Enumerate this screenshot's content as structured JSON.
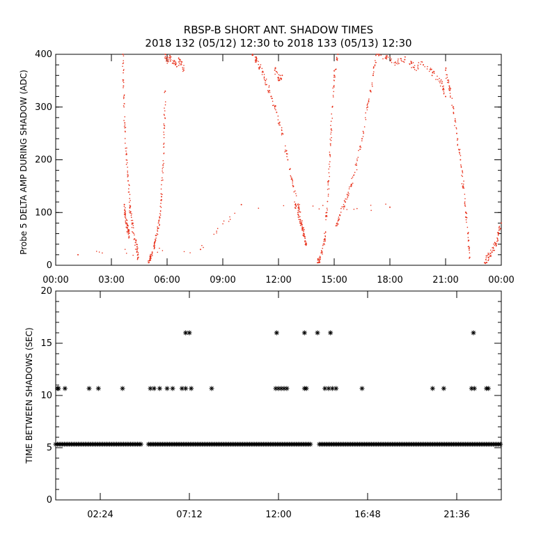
{
  "title_line1": "RBSP-B SHORT ANT. SHADOW TIMES",
  "title_line2": "2018 132 (05/12) 12:30 to 2018 133 (05/13) 12:30",
  "colors": {
    "background": "#ffffff",
    "axes": "#000000",
    "top_points": "#e8301a",
    "bottom_points": "#000000"
  },
  "chart_data": [
    {
      "type": "scatter",
      "ylabel": "Probe 5 DELTA AMP DURING SHADOW (ADC)",
      "xlabel": "",
      "x_unit": "hours",
      "xlim": [
        0,
        24
      ],
      "ylim": [
        0,
        400
      ],
      "x_ticks": [
        0,
        3,
        6,
        9,
        12,
        15,
        18,
        21,
        24
      ],
      "x_tick_labels": [
        "00:00",
        "03:00",
        "06:00",
        "09:00",
        "12:00",
        "15:00",
        "18:00",
        "21:00",
        "00:00"
      ],
      "y_ticks": [
        0,
        100,
        200,
        300,
        400
      ],
      "y_tick_labels": [
        "0",
        "100",
        "200",
        "300",
        "400"
      ],
      "marker": "dot",
      "color": "#e8301a",
      "series": [
        {
          "segments": [
            {
              "x": [
                3.62,
                3.65,
                3.72,
                3.8,
                3.9,
                4.0,
                4.12,
                4.25,
                4.38,
                4.45
              ],
              "y": [
                400,
                340,
                270,
                210,
                160,
                110,
                80,
                50,
                30,
                15
              ]
            },
            {
              "x": [
                3.7,
                3.75,
                3.82,
                3.9,
                3.95
              ],
              "y": [
                115,
                95,
                80,
                65,
                55
              ]
            },
            {
              "x": [
                5.0,
                5.1,
                5.2,
                5.35,
                5.5,
                5.6,
                5.7,
                5.78,
                5.85,
                5.9
              ],
              "y": [
                5,
                15,
                25,
                45,
                70,
                90,
                130,
                190,
                260,
                330
              ]
            },
            {
              "x": [
                5.9,
                6.0,
                6.2,
                6.45,
                6.7,
                6.9
              ],
              "y": [
                400,
                390,
                395,
                380,
                390,
                370
              ]
            },
            {
              "x": [
                10.6,
                10.8,
                11.0,
                11.3,
                11.6,
                11.9,
                12.2,
                12.5,
                12.8,
                13.1,
                13.3,
                13.5
              ],
              "y": [
                400,
                390,
                375,
                350,
                320,
                290,
                250,
                200,
                150,
                110,
                70,
                40
              ]
            },
            {
              "x": [
                11.8,
                12.0,
                12.2
              ],
              "y": [
                370,
                355,
                360
              ]
            },
            {
              "x": [
                12.9,
                13.05,
                13.2,
                13.35,
                13.5
              ],
              "y": [
                115,
                100,
                80,
                60,
                40
              ]
            },
            {
              "x": [
                14.1,
                14.2,
                14.35,
                14.5,
                14.6,
                14.7,
                14.8,
                14.9,
                15.0,
                15.2
              ],
              "y": [
                5,
                10,
                25,
                50,
                100,
                160,
                230,
                300,
                360,
                400
              ]
            },
            {
              "x": [
                15.1,
                15.3,
                15.6,
                15.9,
                16.2,
                16.5,
                16.8,
                17.1,
                17.3
              ],
              "y": [
                75,
                95,
                120,
                150,
                190,
                240,
                300,
                360,
                400
              ]
            },
            {
              "x": [
                17.4,
                17.8,
                18.3,
                18.8,
                19.3,
                19.8,
                20.3,
                20.8,
                21.0
              ],
              "y": [
                400,
                395,
                385,
                390,
                375,
                380,
                365,
                345,
                320
              ]
            },
            {
              "x": [
                21.0,
                21.2,
                21.4,
                21.6,
                21.8,
                21.95,
                22.1,
                22.2,
                22.3
              ],
              "y": [
                370,
                340,
                300,
                250,
                200,
                150,
                100,
                60,
                15
              ]
            },
            {
              "x": [
                23.1,
                23.3,
                23.5,
                23.7,
                23.85,
                24.0
              ],
              "y": [
                5,
                15,
                25,
                40,
                60,
                80
              ]
            },
            {
              "x": [
                1.2,
                7.8,
                10.0,
                18.0
              ],
              "y": [
                20,
                30,
                115,
                110
              ]
            }
          ]
        }
      ]
    },
    {
      "type": "scatter",
      "ylabel": "TIME BETWEEN SHADOWS (SEC)",
      "xlabel": "",
      "x_unit": "hours",
      "xlim": [
        0,
        24
      ],
      "ylim": [
        0,
        20
      ],
      "x_ticks": [
        2.4,
        7.2,
        12.0,
        16.8,
        21.6
      ],
      "x_tick_labels": [
        "02:24",
        "07:12",
        "12:00",
        "16:48",
        "21:36"
      ],
      "y_ticks": [
        0,
        5,
        10,
        15,
        20
      ],
      "y_tick_labels": [
        "0",
        "5",
        "10",
        "15",
        "20"
      ],
      "marker": "asterisk",
      "color": "#000000",
      "series": [
        {
          "baseline": {
            "y": 5.33,
            "x_ranges": [
              [
                0,
                4.6
              ],
              [
                5.0,
                13.8
              ],
              [
                14.2,
                24
              ]
            ]
          },
          "points": {
            "x": [
              0.15,
              0.5,
              1.8,
              2.3,
              3.6,
              5.1,
              5.3,
              5.6,
              6.0,
              6.3,
              6.8,
              7.0,
              7.3,
              8.4,
              11.85,
              12.0,
              12.15,
              12.3,
              12.45,
              13.4,
              13.5,
              14.5,
              14.7,
              14.9,
              15.1,
              16.5,
              20.3,
              20.9,
              22.4,
              22.55,
              23.2,
              23.3,
              0.1,
              7.0,
              7.2,
              11.9,
              13.4,
              14.1,
              14.8,
              22.5
            ],
            "y": [
              10.67,
              10.67,
              10.67,
              10.67,
              10.67,
              10.67,
              10.67,
              10.67,
              10.67,
              10.67,
              10.67,
              10.67,
              10.67,
              10.67,
              10.67,
              10.67,
              10.67,
              10.67,
              10.67,
              10.67,
              10.67,
              10.67,
              10.67,
              10.67,
              10.67,
              10.67,
              10.67,
              10.67,
              10.67,
              10.67,
              10.67,
              10.67,
              10.67,
              16.0,
              16.0,
              16.0,
              16.0,
              16.0,
              16.0,
              16.0
            ]
          }
        }
      ]
    }
  ]
}
